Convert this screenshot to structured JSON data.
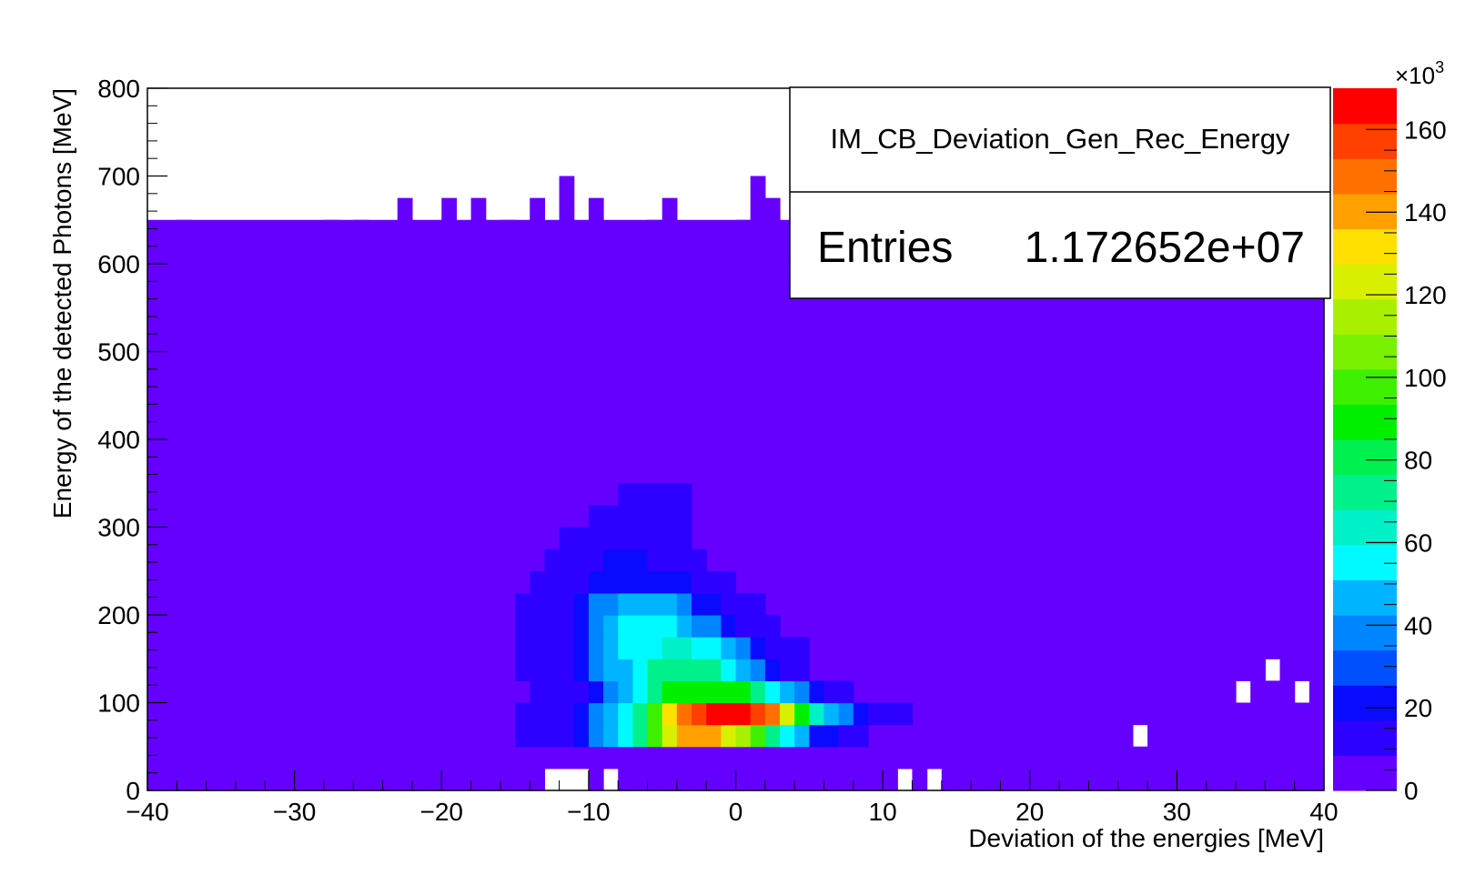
{
  "chart_data": {
    "type": "heatmap",
    "title": "",
    "xlabel": "Deviation of the energies [MeV]",
    "ylabel": "Energy of the detected Photons [MeV]",
    "xlim": [
      -40,
      40
    ],
    "ylim": [
      0,
      800
    ],
    "x_ticks": [
      -40,
      -30,
      -20,
      -10,
      0,
      10,
      20,
      30,
      40
    ],
    "x_tick_labels": [
      "−40",
      "−30",
      "−20",
      "−10",
      "0",
      "10",
      "20",
      "30",
      "40"
    ],
    "y_ticks": [
      0,
      100,
      200,
      300,
      400,
      500,
      600,
      700,
      800
    ],
    "y_tick_labels": [
      "0",
      "100",
      "200",
      "300",
      "400",
      "500",
      "600",
      "700",
      "800"
    ],
    "z_range": [
      0,
      170
    ],
    "z_exponent_label": "×10",
    "z_exponent_power": "3",
    "z_ticks": [
      0,
      20,
      40,
      60,
      80,
      100,
      120,
      140,
      160
    ],
    "z_tick_labels": [
      "0",
      "20",
      "40",
      "60",
      "80",
      "100",
      "120",
      "140",
      "160"
    ],
    "palette": [
      "#6500ff",
      "#2e00ff",
      "#0a0aff",
      "#0050ff",
      "#0086ff",
      "#00b4ff",
      "#00faff",
      "#00f0c8",
      "#00f08c",
      "#00f050",
      "#00f000",
      "#3ef000",
      "#78f000",
      "#a8f000",
      "#d8f000",
      "#ffe000",
      "#ffa000",
      "#ff7000",
      "#ff4000",
      "#ff0000"
    ],
    "stats_box": {
      "name": "IM_CB_Deviation_Gen_Rec_Energy",
      "entries_label": "Entries",
      "entries_value": "1.172652e+07"
    },
    "background_region": {
      "x_range": [
        -40,
        40
      ],
      "y_range": [
        0,
        650
      ],
      "value": 0.5,
      "empty_cells": [
        [
          -13,
          0
        ],
        [
          -12,
          0
        ],
        [
          -11,
          0
        ],
        [
          -9,
          0
        ],
        [
          11,
          0
        ],
        [
          13,
          0
        ],
        [
          27,
          50
        ],
        [
          34,
          100
        ],
        [
          36,
          125
        ],
        [
          38,
          100
        ]
      ]
    },
    "top_edge_bins": [
      {
        "x": -39,
        "y_top": 600
      },
      {
        "x": -38,
        "y_top": 650
      },
      {
        "x": -37,
        "y_top": 600
      },
      {
        "x": -35,
        "y_top": 600
      },
      {
        "x": -34,
        "y_top": 625
      },
      {
        "x": -28,
        "y_top": 650
      },
      {
        "x": -26,
        "y_top": 650
      },
      {
        "x": -23,
        "y_top": 675
      },
      {
        "x": -21,
        "y_top": 625
      },
      {
        "x": -20,
        "y_top": 675
      },
      {
        "x": -18,
        "y_top": 675
      },
      {
        "x": -16,
        "y_top": 650
      },
      {
        "x": -14,
        "y_top": 675
      },
      {
        "x": -12,
        "y_top": 700
      },
      {
        "x": -10,
        "y_top": 675
      },
      {
        "x": -6,
        "y_top": 650
      },
      {
        "x": -5,
        "y_top": 675
      },
      {
        "x": 0,
        "y_top": 650
      },
      {
        "x": 1,
        "y_top": 700
      },
      {
        "x": 2,
        "y_top": 675
      }
    ],
    "peak_rows": [
      {
        "y": 62.5,
        "x_from": -15,
        "cells": [
          10,
          10,
          10,
          15,
          20,
          35,
          45,
          55,
          75,
          95,
          125,
          140,
          140,
          140,
          125,
          115,
          95,
          75,
          55,
          45,
          25,
          20,
          15,
          15
        ]
      },
      {
        "y": 87.5,
        "x_from": -15,
        "cells": [
          10,
          10,
          10,
          15,
          20,
          35,
          45,
          55,
          75,
          95,
          130,
          145,
          160,
          165,
          165,
          165,
          160,
          145,
          120,
          90,
          65,
          45,
          35,
          20,
          15,
          15,
          10
        ]
      },
      {
        "y": 112.5,
        "x_from": -14,
        "cells": [
          10,
          10,
          10,
          15,
          20,
          35,
          45,
          55,
          70,
          85,
          90,
          90,
          90,
          90,
          85,
          70,
          55,
          45,
          35,
          25,
          15,
          10
        ]
      },
      {
        "y": 137.5,
        "x_from": -15,
        "cells": [
          10,
          10,
          10,
          15,
          20,
          35,
          45,
          50,
          55,
          70,
          75,
          75,
          75,
          70,
          55,
          45,
          35,
          25,
          15,
          10
        ]
      },
      {
        "y": 162.5,
        "x_from": -15,
        "cells": [
          10,
          10,
          10,
          15,
          20,
          35,
          45,
          55,
          55,
          55,
          65,
          65,
          55,
          55,
          45,
          35,
          25,
          15,
          10,
          10
        ]
      },
      {
        "y": 187.5,
        "x_from": -15,
        "cells": [
          10,
          10,
          10,
          15,
          20,
          35,
          45,
          55,
          55,
          55,
          55,
          45,
          35,
          35,
          25,
          15,
          10,
          10
        ]
      },
      {
        "y": 212.5,
        "x_from": -15,
        "cells": [
          10,
          10,
          10,
          15,
          20,
          35,
          35,
          45,
          45,
          45,
          45,
          35,
          25,
          25,
          15,
          10,
          10
        ]
      },
      {
        "y": 237.5,
        "x_from": -14,
        "cells": [
          10,
          10,
          10,
          15,
          20,
          25,
          25,
          25,
          25,
          20,
          20,
          15,
          10,
          10
        ]
      },
      {
        "y": 262.5,
        "x_from": -13,
        "cells": [
          10,
          10,
          15,
          15,
          20,
          20,
          20,
          15,
          15,
          10,
          10
        ]
      },
      {
        "y": 287.5,
        "x_from": -12,
        "cells": [
          10,
          10,
          15,
          15,
          15,
          15,
          15,
          10,
          10
        ]
      },
      {
        "y": 312.5,
        "x_from": -10,
        "cells": [
          10,
          10,
          10,
          10,
          10,
          10,
          10
        ]
      },
      {
        "y": 337.5,
        "x_from": -8,
        "cells": [
          10,
          10,
          10,
          10,
          10
        ]
      }
    ]
  }
}
